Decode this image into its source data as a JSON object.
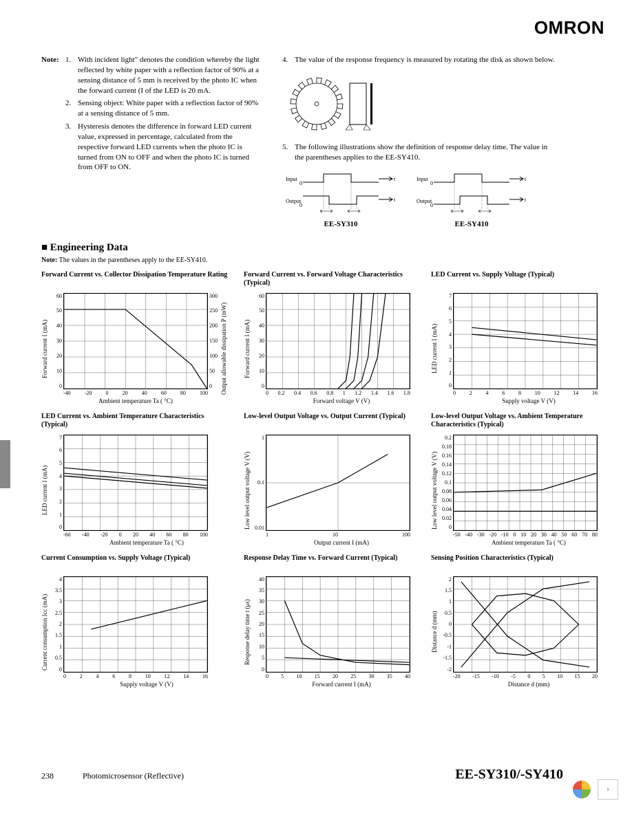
{
  "logo": "OMRON",
  "notes": {
    "label": "Note:",
    "left": [
      {
        "n": "1.",
        "text": "With incident light\" denotes the condition whereby the light reflected by white paper with a reflection factor of 90% at a sensing distance of 5 mm is received by the photo IC when the forward current (I of the LED is 20 mA."
      },
      {
        "n": "2.",
        "text": "Sensing object: White paper with a reflection factor of 90% at a sensing distance of 5 mm."
      },
      {
        "n": "3.",
        "text": "Hysteresis denotes the difference in forward LED current value, expressed in percentage, calculated from the respective forward LED currents when the photo IC is turned from ON to OFF and when the photo IC is turned from OFF to ON."
      }
    ],
    "right": [
      {
        "n": "4.",
        "text": "The value of the response frequency is measured by rotating the disk as shown below."
      },
      {
        "n": "5.",
        "text": "The following illustrations show the definition of response delay time. The value in the parentheses applies to the EE-SY410."
      }
    ]
  },
  "timing_labels": [
    "EE-SY310",
    "EE-SY410"
  ],
  "eng_header": "■ Engineering Data",
  "eng_note_label": "Note:",
  "eng_note": "The values in the parentheses apply to the EE-SY410.",
  "charts": [
    {
      "title": "Forward Current vs. Collector Dissipation Temperature Rating",
      "ylabel": "Forward current I       (mA)",
      "ylabel2": "Output allowable dissipation P     (mW)",
      "xlabel": "Ambient temperature Ta (       °C)",
      "xlim": [
        -40,
        100
      ],
      "xticks": [
        -40,
        -20,
        0,
        20,
        40,
        60,
        80,
        100
      ],
      "ylim": [
        0,
        60
      ],
      "yticks": [
        60,
        50,
        40,
        30,
        20,
        10,
        0
      ],
      "ylim2": [
        0,
        300
      ],
      "yticks2": [
        300,
        250,
        200,
        150,
        100,
        50,
        0
      ],
      "series": [
        {
          "type": "line",
          "color": "#000",
          "points": [
            [
              -40,
              50
            ],
            [
              20,
              50
            ],
            [
              85,
              15
            ],
            [
              100,
              0
            ]
          ]
        }
      ]
    },
    {
      "title": "Forward Current vs. Forward Voltage Characteristics (Typical)",
      "ylabel": "Forward current I       (mA)",
      "xlabel": "Forward voltage V       (V)",
      "xlim": [
        0,
        1.8
      ],
      "xticks": [
        0,
        0.2,
        0.4,
        0.6,
        0.8,
        1.0,
        1.2,
        1.4,
        1.6,
        1.8
      ],
      "ylim": [
        0,
        60
      ],
      "yticks": [
        60,
        50,
        40,
        30,
        20,
        10,
        0
      ],
      "series": [
        {
          "type": "line",
          "color": "#000",
          "points": [
            [
              0.9,
              0
            ],
            [
              1.0,
              5
            ],
            [
              1.05,
              20
            ],
            [
              1.1,
              60
            ]
          ]
        },
        {
          "type": "line",
          "color": "#000",
          "points": [
            [
              1.0,
              0
            ],
            [
              1.1,
              5
            ],
            [
              1.15,
              20
            ],
            [
              1.2,
              60
            ]
          ]
        },
        {
          "type": "line",
          "color": "#000",
          "points": [
            [
              1.1,
              0
            ],
            [
              1.2,
              5
            ],
            [
              1.28,
              20
            ],
            [
              1.35,
              60
            ]
          ]
        },
        {
          "type": "line",
          "color": "#000",
          "points": [
            [
              1.2,
              0
            ],
            [
              1.3,
              5
            ],
            [
              1.4,
              20
            ],
            [
              1.5,
              60
            ]
          ]
        }
      ]
    },
    {
      "title": "LED Current vs. Supply Voltage (Typical)",
      "ylabel": "LED current I       (mA)",
      "xlabel": "Supply voltage V       (V)",
      "xlim": [
        0,
        16
      ],
      "xticks": [
        0,
        2,
        4,
        6,
        8,
        10,
        12,
        14,
        16
      ],
      "ylim": [
        0,
        7
      ],
      "yticks": [
        7,
        6,
        5,
        4,
        3,
        2,
        1,
        0
      ],
      "series": [
        {
          "type": "line",
          "color": "#000",
          "points": [
            [
              2,
              4.5
            ],
            [
              16,
              3.6
            ]
          ]
        },
        {
          "type": "line",
          "color": "#000",
          "points": [
            [
              2,
              4.0
            ],
            [
              16,
              3.2
            ]
          ]
        }
      ]
    },
    {
      "title": "LED Current vs. Ambient Temperature Characteristics (Typical)",
      "ylabel": "LED current I       (mA)",
      "xlabel": "Ambient temperature Ta (       °C)",
      "xlim": [
        -60,
        100
      ],
      "xticks": [
        -60,
        -40,
        -20,
        0,
        20,
        40,
        60,
        80,
        100
      ],
      "ylim": [
        0,
        7
      ],
      "yticks": [
        7,
        6,
        5,
        4,
        3,
        2,
        1,
        0
      ],
      "series": [
        {
          "type": "line",
          "color": "#000",
          "points": [
            [
              -60,
              4.6
            ],
            [
              100,
              3.7
            ]
          ]
        },
        {
          "type": "line",
          "color": "#000",
          "points": [
            [
              -60,
              4.2
            ],
            [
              100,
              3.3
            ]
          ]
        },
        {
          "type": "line",
          "color": "#000",
          "points": [
            [
              -60,
              4.0
            ],
            [
              100,
              3.1
            ]
          ]
        }
      ]
    },
    {
      "title": "Low-level Output Voltage vs. Output Current (Typical)",
      "ylabel": "Low level output voltage V       (V)",
      "xlabel": "Output current I       (mA)",
      "xscale": "log",
      "yscale": "log",
      "xlim": [
        1,
        100
      ],
      "xticks": [
        1,
        10,
        100
      ],
      "ylim": [
        0.01,
        1
      ],
      "yticks": [
        1,
        0.1,
        0.01
      ],
      "series": [
        {
          "type": "line",
          "color": "#000",
          "points": [
            [
              1,
              0.03
            ],
            [
              10,
              0.1
            ],
            [
              50,
              0.4
            ]
          ]
        }
      ]
    },
    {
      "title": "Low-level Output Voltage vs. Ambient Temperature Characteristics (Typical)",
      "ylabel": "Low level output voltage V       (V)",
      "xlabel": "Ambient temperature Ta (       °C)",
      "xlim": [
        -50,
        80
      ],
      "xticks": [
        -50,
        -40,
        -30,
        -20,
        -10,
        0,
        10,
        20,
        30,
        40,
        50,
        60,
        70,
        80
      ],
      "ylim": [
        0,
        0.2
      ],
      "yticks": [
        0.2,
        0.18,
        0.16,
        0.14,
        0.12,
        0.1,
        0.08,
        0.06,
        0.04,
        0.02,
        0
      ],
      "series": [
        {
          "type": "line",
          "color": "#000",
          "points": [
            [
              -50,
              0.08
            ],
            [
              30,
              0.085
            ],
            [
              80,
              0.12
            ]
          ]
        },
        {
          "type": "line",
          "color": "#000",
          "points": [
            [
              -50,
              0.04
            ],
            [
              80,
              0.04
            ]
          ]
        }
      ]
    },
    {
      "title": "Current Consumption vs. Supply Voltage (Typical)",
      "ylabel": "Current consumption Icc (mA)",
      "xlabel": "Supply voltage V       (V)",
      "xlim": [
        0,
        16
      ],
      "xticks": [
        0,
        2,
        4,
        6,
        8,
        10,
        12,
        14,
        16
      ],
      "ylim": [
        0,
        4
      ],
      "yticks": [
        4,
        3.5,
        3.0,
        2.5,
        2.0,
        1.5,
        1.0,
        0.5,
        0
      ],
      "series": [
        {
          "type": "line",
          "color": "#000",
          "points": [
            [
              3,
              1.8
            ],
            [
              16,
              3.0
            ]
          ]
        }
      ]
    },
    {
      "title": "Response Delay Time vs. Forward Current (Typical)",
      "ylabel": "Response delay time t       (μs)",
      "xlabel": "Forward current I       (mA)",
      "xlim": [
        0,
        40
      ],
      "xticks": [
        0,
        5,
        10,
        15,
        20,
        25,
        30,
        35,
        40
      ],
      "ylim": [
        0,
        40
      ],
      "yticks": [
        40,
        35,
        30,
        25,
        20,
        15,
        10,
        5,
        0
      ],
      "series": [
        {
          "type": "line",
          "color": "#000",
          "points": [
            [
              5,
              30
            ],
            [
              10,
              12
            ],
            [
              15,
              7
            ],
            [
              25,
              4
            ],
            [
              40,
              3
            ]
          ]
        },
        {
          "type": "line",
          "color": "#000",
          "points": [
            [
              5,
              6
            ],
            [
              40,
              4
            ]
          ]
        }
      ]
    },
    {
      "title": "Sensing Position Characteristics (Typical)",
      "ylabel": "Distance d       (mm)",
      "xlabel": "Distance d       (mm)",
      "xlim": [
        -20,
        20
      ],
      "xticks": [
        -20,
        -15,
        -10,
        -5,
        0,
        5,
        10,
        15,
        20
      ],
      "ylim": [
        -2,
        2
      ],
      "yticks": [
        2,
        1.5,
        1.0,
        0.5,
        0,
        -0.5,
        -1.0,
        -1.5,
        -2
      ],
      "series": [
        {
          "type": "line",
          "color": "#000",
          "points": [
            [
              -15,
              0
            ],
            [
              -8,
              1.2
            ],
            [
              0,
              1.3
            ],
            [
              8,
              1.0
            ],
            [
              15,
              0
            ]
          ]
        },
        {
          "type": "line",
          "color": "#000",
          "points": [
            [
              -15,
              0
            ],
            [
              -8,
              -1.2
            ],
            [
              0,
              -1.3
            ],
            [
              8,
              -1.0
            ],
            [
              15,
              0
            ]
          ]
        },
        {
          "type": "line",
          "color": "#000",
          "points": [
            [
              -18,
              -1.8
            ],
            [
              -5,
              0.5
            ],
            [
              5,
              1.5
            ],
            [
              18,
              1.8
            ]
          ]
        },
        {
          "type": "line",
          "color": "#000",
          "points": [
            [
              -18,
              1.8
            ],
            [
              -5,
              -0.5
            ],
            [
              5,
              -1.5
            ],
            [
              18,
              -1.8
            ]
          ]
        }
      ]
    }
  ],
  "footer": {
    "page": "238",
    "category": "Photomicrosensor (Reflective)",
    "model": "EE-SY310/-SY410"
  },
  "colors": {
    "grid": "#000000",
    "bg": "#ffffff",
    "line": "#000000",
    "tab": "#888888"
  }
}
